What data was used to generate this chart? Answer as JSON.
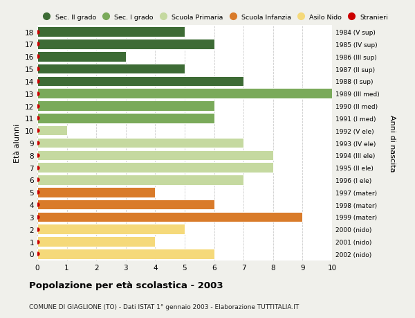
{
  "ages": [
    18,
    17,
    16,
    15,
    14,
    13,
    12,
    11,
    10,
    9,
    8,
    7,
    6,
    5,
    4,
    3,
    2,
    1,
    0
  ],
  "right_labels": [
    "1984 (V sup)",
    "1985 (IV sup)",
    "1986 (III sup)",
    "1987 (II sup)",
    "1988 (I sup)",
    "1989 (III med)",
    "1990 (II med)",
    "1991 (I med)",
    "1992 (V ele)",
    "1993 (IV ele)",
    "1994 (III ele)",
    "1995 (II ele)",
    "1996 (I ele)",
    "1997 (mater)",
    "1998 (mater)",
    "1999 (mater)",
    "2000 (nido)",
    "2001 (nido)",
    "2002 (nido)"
  ],
  "values": [
    5,
    6,
    3,
    5,
    7,
    10,
    6,
    6,
    1,
    7,
    8,
    8,
    7,
    4,
    6,
    9,
    5,
    4,
    6
  ],
  "bar_colors": [
    "#3d6b35",
    "#3d6b35",
    "#3d6b35",
    "#3d6b35",
    "#3d6b35",
    "#7aaa5a",
    "#7aaa5a",
    "#7aaa5a",
    "#c5d9a0",
    "#c5d9a0",
    "#c5d9a0",
    "#c5d9a0",
    "#c5d9a0",
    "#d97b2a",
    "#d97b2a",
    "#d97b2a",
    "#f5d97a",
    "#f5d97a",
    "#f5d97a"
  ],
  "stranieri_dot_color": "#cc0000",
  "legend_items": [
    {
      "label": "Sec. II grado",
      "color": "#3d6b35",
      "type": "patch"
    },
    {
      "label": "Sec. I grado",
      "color": "#7aaa5a",
      "type": "patch"
    },
    {
      "label": "Scuola Primaria",
      "color": "#c5d9a0",
      "type": "patch"
    },
    {
      "label": "Scuola Infanzia",
      "color": "#d97b2a",
      "type": "patch"
    },
    {
      "label": "Asilo Nido",
      "color": "#f5d97a",
      "type": "patch"
    },
    {
      "label": "Stranieri",
      "color": "#cc0000",
      "type": "dot"
    }
  ],
  "ylabel_left": "Età alunni",
  "ylabel_right": "Anni di nascita",
  "title": "Popolazione per età scolastica - 2003",
  "subtitle": "COMUNE DI GIAGLIONE (TO) - Dati ISTAT 1° gennaio 2003 - Elaborazione TUTTITALIA.IT",
  "xlim": [
    0,
    10
  ],
  "xticks": [
    0,
    1,
    2,
    3,
    4,
    5,
    6,
    7,
    8,
    9,
    10
  ],
  "background_color": "#f0f0eb",
  "plot_background": "#ffffff",
  "grid_color": "#cccccc",
  "bar_height": 0.82
}
